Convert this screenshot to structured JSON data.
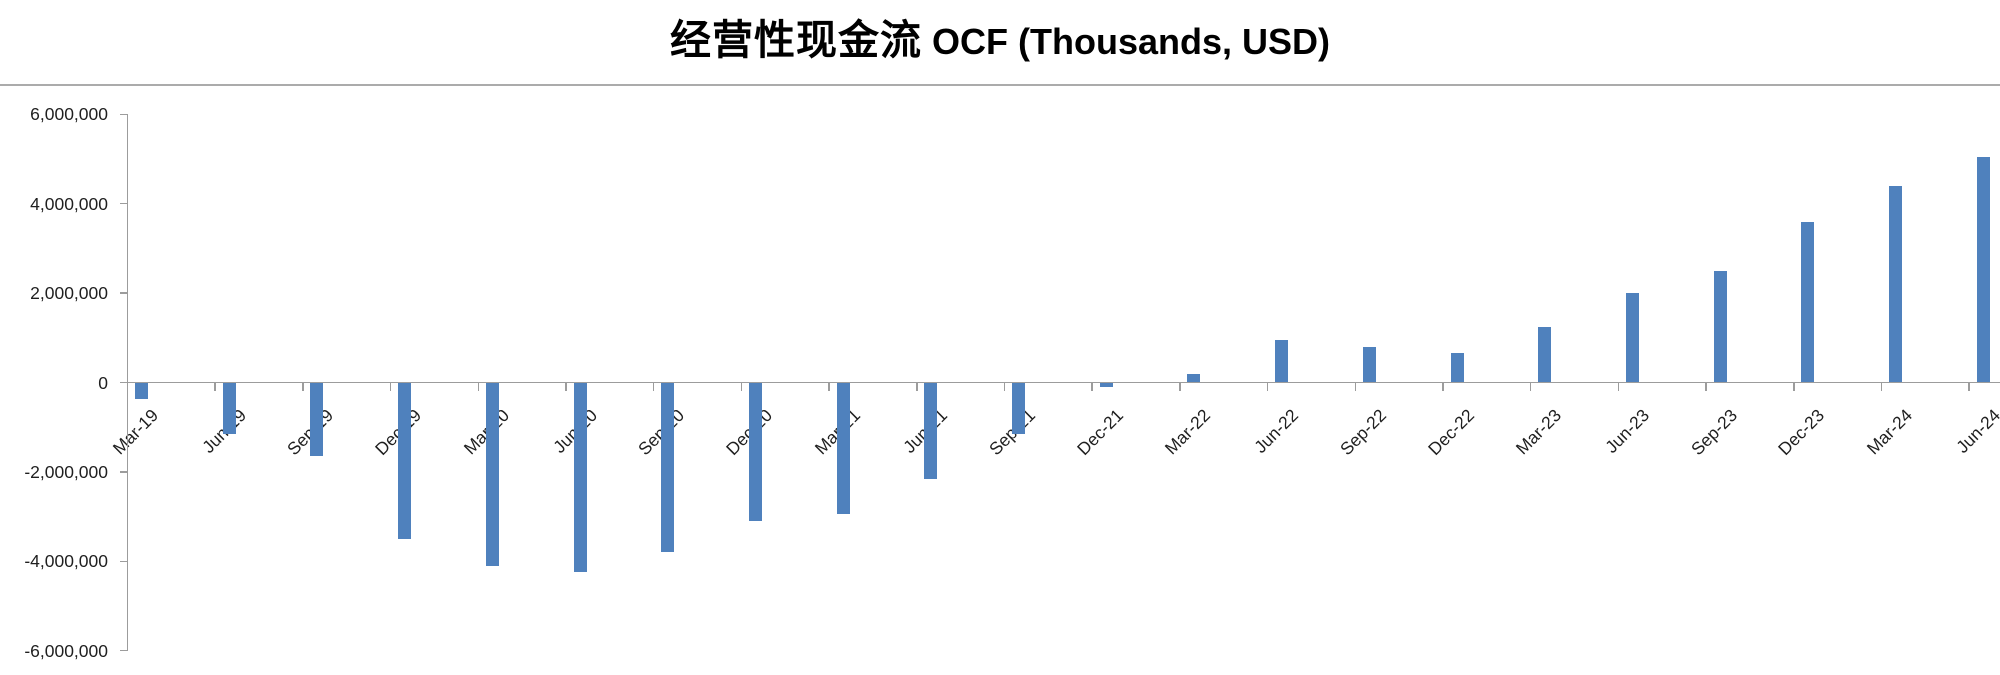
{
  "title": {
    "zh": "经营性现金流",
    "latin": " OCF (Thousands, USD)"
  },
  "chart_data": {
    "type": "bar",
    "title": "经营性现金流 OCF (Thousands, USD)",
    "xlabel": "",
    "ylabel": "",
    "units": "Thousands, USD",
    "categories": [
      "Mar-19",
      "Jun-19",
      "Sep-19",
      "Dec-19",
      "Mar-20",
      "Jun-20",
      "Sep-20",
      "Dec-20",
      "Mar-21",
      "Jun-21",
      "Sep-21",
      "Dec-21",
      "Mar-22",
      "Jun-22",
      "Sep-22",
      "Dec-22",
      "Mar-23",
      "Jun-23",
      "Sep-23",
      "Dec-23",
      "Mar-24",
      "Jun-24"
    ],
    "values": [
      -370000,
      -1150000,
      -1650000,
      -3500000,
      -4100000,
      -4250000,
      -3800000,
      -3100000,
      -2950000,
      -2150000,
      -1150000,
      -100000,
      200000,
      950000,
      800000,
      650000,
      1250000,
      2000000,
      2500000,
      3600000,
      4400000,
      5050000
    ],
    "ylim": [
      -6000000,
      6000000
    ],
    "ytick_interval": 2000000,
    "ytick_labels": [
      "6,000,000",
      "4,000,000",
      "2,000,000",
      "0",
      "-2,000,000",
      "-4,000,000",
      "-6,000,000"
    ],
    "grid": false,
    "legend_position": "none",
    "bar_color": "#4F81BD",
    "axis_color": "#9C9C9C",
    "border_color": "#ABABAB",
    "text_color": "#1F1F1F"
  }
}
